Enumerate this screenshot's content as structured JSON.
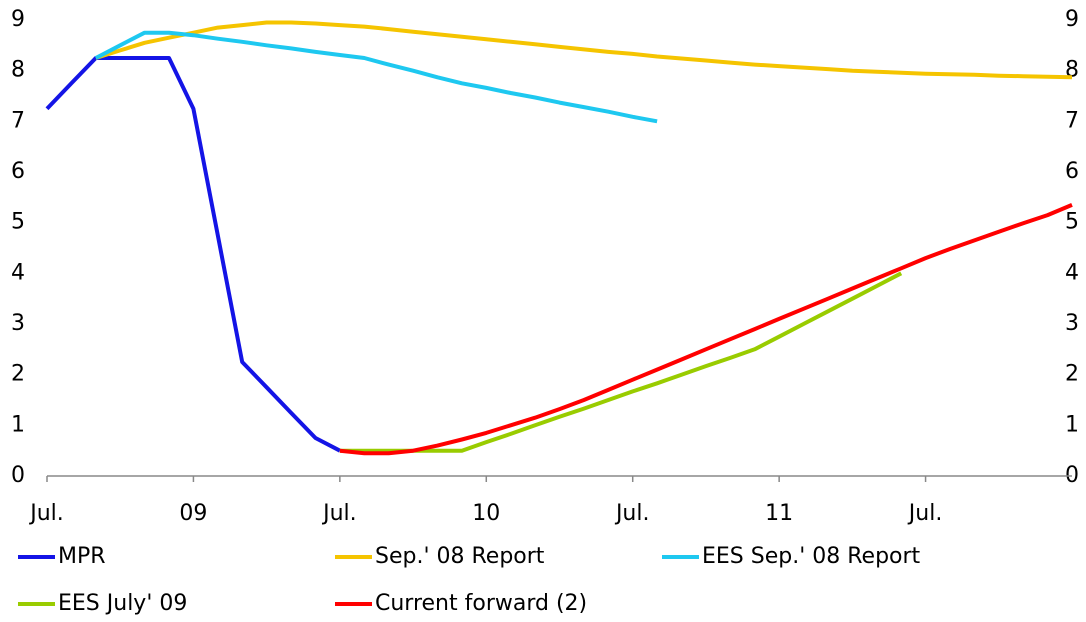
{
  "chart_data": {
    "type": "line",
    "categories": [
      "Jul.",
      null,
      null,
      null,
      null,
      null,
      "09",
      null,
      null,
      null,
      null,
      null,
      "Jul.",
      null,
      null,
      null,
      null,
      null,
      "10",
      null,
      null,
      null,
      null,
      null,
      "Jul.",
      null,
      null,
      null,
      null,
      null,
      "11",
      null,
      null,
      null,
      null,
      null,
      "Jul.",
      null,
      null,
      null,
      null,
      null,
      null
    ],
    "ylim": [
      0,
      9
    ],
    "yticks": [
      0,
      1,
      2,
      3,
      4,
      5,
      6,
      7,
      8,
      9
    ],
    "grid": false,
    "legend": "bottom",
    "series": [
      {
        "name": "MPR",
        "color": "#1414e6",
        "values": [
          7.25,
          7.75,
          8.25,
          8.25,
          8.25,
          8.25,
          7.25,
          4.75,
          2.25,
          1.75,
          1.25,
          0.75,
          0.5,
          null,
          null,
          null,
          null,
          null,
          null,
          null,
          null,
          null,
          null,
          null,
          null,
          null,
          null,
          null,
          null,
          null,
          null,
          null,
          null,
          null,
          null,
          null,
          null,
          null,
          null,
          null,
          null,
          null,
          null
        ]
      },
      {
        "name": "Sep.' 08 Report",
        "color": "#f5c400",
        "values": [
          null,
          null,
          8.25,
          8.4,
          8.55,
          8.65,
          8.75,
          8.85,
          8.9,
          8.95,
          8.95,
          8.93,
          8.9,
          8.87,
          8.82,
          8.77,
          8.72,
          8.67,
          8.62,
          8.57,
          8.52,
          8.47,
          8.42,
          8.37,
          8.33,
          8.28,
          8.24,
          8.2,
          8.16,
          8.12,
          8.09,
          8.06,
          8.03,
          8.0,
          7.98,
          7.96,
          7.94,
          7.93,
          7.92,
          7.9,
          7.89,
          7.88,
          7.87
        ]
      },
      {
        "name": "EES Sep.' 08 Report",
        "color": "#1ec8f0",
        "values": [
          null,
          null,
          8.25,
          8.5,
          8.75,
          8.75,
          8.7,
          8.63,
          8.57,
          8.5,
          8.44,
          8.37,
          8.31,
          8.25,
          8.12,
          8.0,
          7.87,
          7.75,
          7.66,
          7.56,
          7.47,
          7.37,
          7.28,
          7.19,
          7.09,
          7.0,
          null,
          null,
          null,
          null,
          null,
          null,
          null,
          null,
          null,
          null,
          null,
          null,
          null,
          null,
          null,
          null,
          null
        ]
      },
      {
        "name": "EES July' 09",
        "color": "#99cc00",
        "values": [
          null,
          null,
          null,
          null,
          null,
          null,
          null,
          null,
          null,
          null,
          null,
          null,
          0.5,
          0.5,
          0.5,
          0.5,
          0.5,
          0.5,
          0.67,
          0.83,
          1.0,
          1.17,
          1.33,
          1.5,
          1.67,
          1.83,
          2.0,
          2.17,
          2.33,
          2.5,
          2.75,
          3.0,
          3.25,
          3.5,
          3.75,
          4.0,
          null,
          null,
          null,
          null,
          null,
          null,
          null
        ]
      },
      {
        "name": "Current forward (2)",
        "color": "#ff0000",
        "values": [
          null,
          null,
          null,
          null,
          null,
          null,
          null,
          null,
          null,
          null,
          null,
          null,
          0.5,
          0.45,
          0.45,
          0.5,
          0.6,
          0.72,
          0.85,
          1.0,
          1.15,
          1.32,
          1.5,
          1.7,
          1.9,
          2.1,
          2.3,
          2.5,
          2.7,
          2.9,
          3.1,
          3.3,
          3.5,
          3.7,
          3.9,
          4.1,
          4.3,
          4.48,
          4.65,
          4.82,
          4.99,
          5.15,
          5.35
        ]
      }
    ]
  }
}
